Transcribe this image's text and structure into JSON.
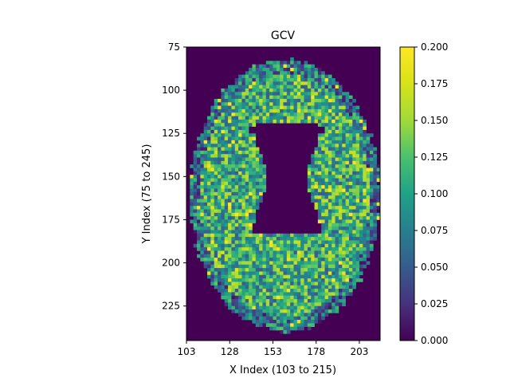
{
  "chart_data": {
    "type": "heatmap",
    "title": "GCV",
    "xlabel": "X Index (103 to 215)",
    "ylabel": "Y Index (75 to 245)",
    "xlim": [
      103,
      215
    ],
    "ylim": [
      75,
      245
    ],
    "x_ticks": [
      "103",
      "128",
      "153",
      "178",
      "203"
    ],
    "y_ticks": [
      "75",
      "100",
      "125",
      "150",
      "175",
      "200",
      "225"
    ],
    "colorbar": {
      "min": 0.0,
      "max": 0.2,
      "ticks": [
        "0.000",
        "0.025",
        "0.050",
        "0.075",
        "0.100",
        "0.125",
        "0.150",
        "0.175",
        "0.200"
      ],
      "colormap": "viridis"
    },
    "background_value": 0.0,
    "description_regions": {
      "brain_mask_center": [
        159,
        160
      ],
      "brain_mask_radii": [
        55,
        79
      ],
      "ventricle_value": 0.0,
      "tissue_mean": 0.11
    }
  },
  "colors": {
    "viridis_low": "#440154",
    "viridis_25": "#3b528b",
    "viridis_50": "#21918c",
    "viridis_75": "#5ec962",
    "viridis_high": "#fde725"
  }
}
